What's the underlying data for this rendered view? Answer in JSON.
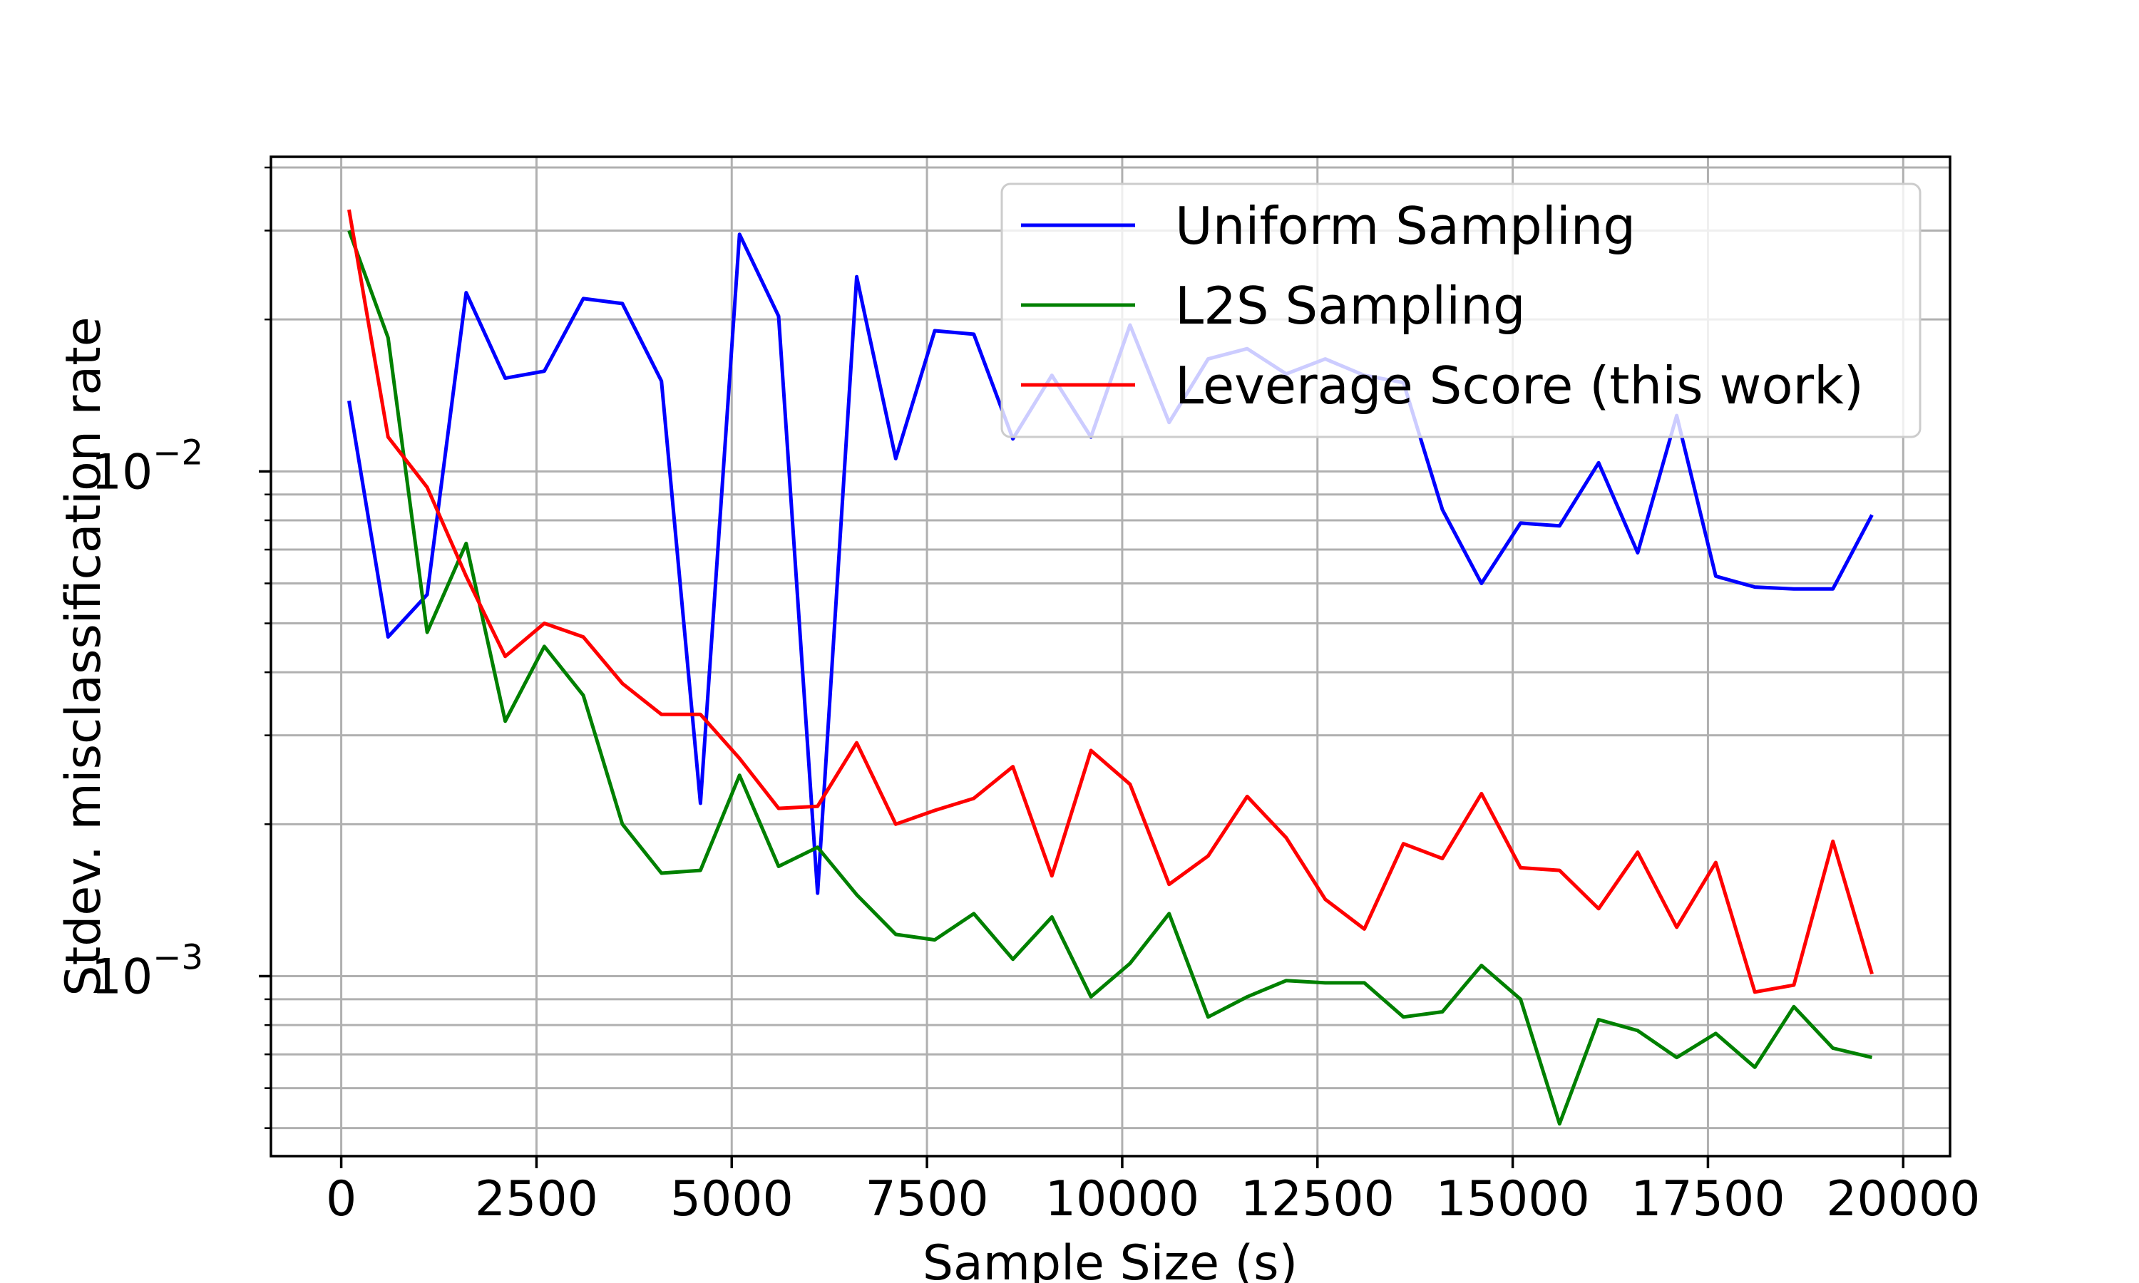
{
  "chart_data": {
    "type": "line",
    "xlabel": "Sample Size (s)",
    "ylabel": "Stdev. misclassification rate",
    "xlim": [
      -900,
      20600
    ],
    "ylim": [
      0.00044,
      0.042
    ],
    "yscale": "log",
    "grid": true,
    "xticks": [
      0,
      2500,
      5000,
      7500,
      10000,
      12500,
      15000,
      17500,
      20000
    ],
    "xtick_labels": [
      "0",
      "2500",
      "5000",
      "7500",
      "10000",
      "12500",
      "15000",
      "17500",
      "20000"
    ],
    "ytick_major": [
      {
        "value": 0.01,
        "base": "10",
        "exp": "−2"
      },
      {
        "value": 0.001,
        "base": "10",
        "exp": "−3"
      }
    ],
    "ytick_minor": [
      0.0005,
      0.0006,
      0.0007,
      0.0008,
      0.0009,
      0.002,
      0.003,
      0.004,
      0.005,
      0.006,
      0.007,
      0.008,
      0.009,
      0.02,
      0.03,
      0.04
    ],
    "legend_position": "upper right",
    "x": [
      100,
      600,
      1100,
      1600,
      2100,
      2600,
      3100,
      3600,
      4100,
      4600,
      5100,
      5600,
      6100,
      6600,
      7100,
      7600,
      8100,
      8600,
      9100,
      9600,
      10100,
      10600,
      11100,
      11600,
      12100,
      12600,
      13100,
      13600,
      14100,
      14600,
      15100,
      15600,
      16100,
      16600,
      17100,
      17600,
      18100,
      18600,
      19100,
      19600
    ],
    "series": [
      {
        "name": "Uniform Sampling",
        "color": "#0000ff",
        "values": [
          0.0138,
          0.0047,
          0.0057,
          0.0226,
          0.0153,
          0.0158,
          0.022,
          0.0215,
          0.0151,
          0.0022,
          0.0295,
          0.0203,
          0.00146,
          0.0243,
          0.0106,
          0.019,
          0.0187,
          0.0116,
          0.0155,
          0.0117,
          0.0195,
          0.0125,
          0.0167,
          0.0175,
          0.0156,
          0.0167,
          0.0155,
          0.015,
          0.0084,
          0.006,
          0.0079,
          0.0078,
          0.0104,
          0.0069,
          0.0129,
          0.0062,
          0.0059,
          0.00585,
          0.00585,
          0.0082
        ]
      },
      {
        "name": "L2S Sampling",
        "color": "#008000",
        "values": [
          0.03,
          0.0184,
          0.0048,
          0.0072,
          0.0032,
          0.0045,
          0.0036,
          0.002,
          0.0016,
          0.00162,
          0.0025,
          0.00165,
          0.0018,
          0.00145,
          0.00121,
          0.00118,
          0.00133,
          0.00108,
          0.00131,
          0.00091,
          0.00106,
          0.00133,
          0.00083,
          0.00091,
          0.00098,
          0.00097,
          0.00097,
          0.00083,
          0.00085,
          0.00105,
          0.0009,
          0.00051,
          0.00082,
          0.00078,
          0.00069,
          0.00077,
          0.00066,
          0.00087,
          0.00072,
          0.00069
        ]
      },
      {
        "name": "Leverage Score (this work)",
        "color": "#ff0000",
        "values": [
          0.033,
          0.0117,
          0.0093,
          0.0062,
          0.0043,
          0.005,
          0.0047,
          0.0038,
          0.0033,
          0.0033,
          0.0027,
          0.00215,
          0.00217,
          0.0029,
          0.002,
          0.00213,
          0.00225,
          0.0026,
          0.00158,
          0.0028,
          0.0024,
          0.00152,
          0.00173,
          0.00227,
          0.00188,
          0.00142,
          0.00124,
          0.00183,
          0.00171,
          0.0023,
          0.00164,
          0.00162,
          0.00136,
          0.00176,
          0.00125,
          0.00168,
          0.00093,
          0.00096,
          0.00185,
          0.00101
        ]
      }
    ]
  }
}
